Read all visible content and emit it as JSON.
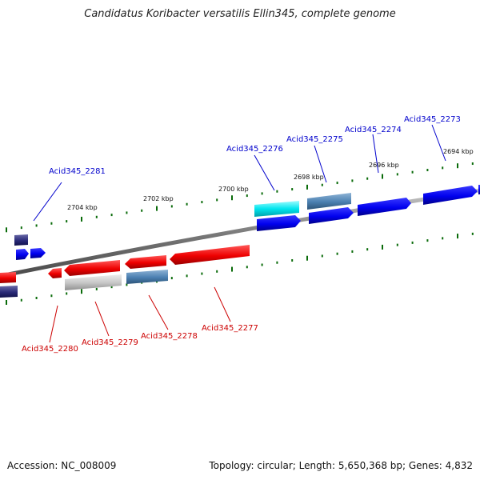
{
  "title": "Candidatus Koribacter versatilis Ellin345, complete genome",
  "footer": {
    "accession": "Accession: NC_008009",
    "info": "Topology: circular; Length: 5,650,368 bp; Genes: 4,832"
  },
  "scale_labels": [
    "2704 kbp",
    "2702 kbp",
    "2700 kbp",
    "2698 kbp",
    "2696 kbp",
    "2694 kbp"
  ],
  "gene_labels_top": [
    "Acid345_2281",
    "Acid345_2276",
    "Acid345_2275",
    "Acid345_2274",
    "Acid345_2273"
  ],
  "gene_labels_bottom": [
    "Acid345_2280",
    "Acid345_2279",
    "Acid345_2278",
    "Acid345_2277"
  ],
  "colors": {
    "forward_label": "#0000cc",
    "reverse_label": "#cc0000",
    "forward_gene": "#0000ee",
    "reverse_gene": "#ee0000",
    "highlight_gene": "#00e5ee",
    "steel_gene": "#4a7fb0",
    "gray_gene": "#bdbdbd",
    "navy_gene": "#1a1a6e",
    "tick": "#0a6b0a",
    "backbone": "#808080"
  }
}
